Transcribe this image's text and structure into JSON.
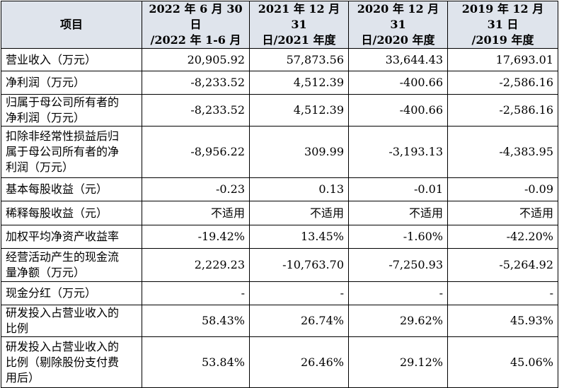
{
  "table": {
    "header": [
      [
        "项目"
      ],
      [
        "2022 年 6 月 30 日",
        "/2022 年 1-6 月"
      ],
      [
        "2021 年 12 月 31",
        "日/2021 年度"
      ],
      [
        "2020 年 12 月 31",
        "日/2020 年度"
      ],
      [
        "2019 年 12 月 31 日",
        "/2019 年度"
      ]
    ],
    "rows": [
      [
        "营业收入（万元）",
        "20,905.92",
        "57,873.56",
        "33,644.43",
        "17,693.01"
      ],
      [
        "净利润（万元）",
        "-8,233.52",
        "4,512.39",
        "-400.66",
        "-2,586.16"
      ],
      [
        "归属于母公司所有者的净利润（万元）",
        "-8,233.52",
        "4,512.39",
        "-400.66",
        "-2,586.16"
      ],
      [
        "扣除非经常性损益后归属于母公司所有者的净利润（万元）",
        "-8,956.22",
        "309.99",
        "-3,193.13",
        "-4,383.95"
      ],
      [
        "基本每股收益（元）",
        "-0.23",
        "0.13",
        "-0.01",
        "-0.09"
      ],
      [
        "稀释每股收益（元）",
        "不适用",
        "不适用",
        "不适用",
        "不适用"
      ],
      [
        "加权平均净资产收益率",
        "-19.42%",
        "13.45%",
        "-1.60%",
        "-42.20%"
      ],
      [
        "经营活动产生的现金流量净额（万元）",
        "2,229.23",
        "-10,763.70",
        "-7,250.93",
        "-5,264.92"
      ],
      [
        "现金分红（万元）",
        "-",
        "-",
        "-",
        "-"
      ],
      [
        "研发投入占营业收入的比例",
        "58.43%",
        "26.74%",
        "29.62%",
        "45.93%"
      ],
      [
        "研发投入占营业收入的比例（剔除股份支付费用后）",
        "53.84%",
        "26.46%",
        "29.12%",
        "45.06%"
      ]
    ]
  }
}
